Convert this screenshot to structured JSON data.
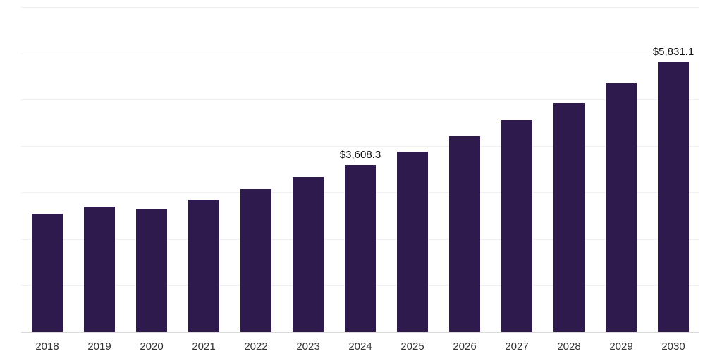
{
  "chart_data": {
    "type": "bar",
    "title": "",
    "xlabel": "",
    "ylabel": "",
    "categories": [
      "2018",
      "2019",
      "2020",
      "2021",
      "2022",
      "2023",
      "2024",
      "2025",
      "2026",
      "2027",
      "2028",
      "2029",
      "2030"
    ],
    "values": [
      2550,
      2715,
      2670,
      2865,
      3085,
      3355,
      3608.3,
      3890,
      4235,
      4575,
      4950,
      5370,
      5831.1
    ],
    "data_labels": [
      {
        "index": 6,
        "text": "$3,608.3"
      },
      {
        "index": 12,
        "text": "$5,831.1"
      }
    ],
    "ylim": [
      0,
      7000
    ],
    "gridline_step": 1000,
    "grid": "horizontal, light gray, no y tick labels",
    "legend": "none",
    "bar_color": "#2e1a4d",
    "gridline_color": "#f1f1f3",
    "axis_line_color": "#d9d9d9",
    "label_color": "#111111",
    "tick_label_color": "#333333"
  }
}
